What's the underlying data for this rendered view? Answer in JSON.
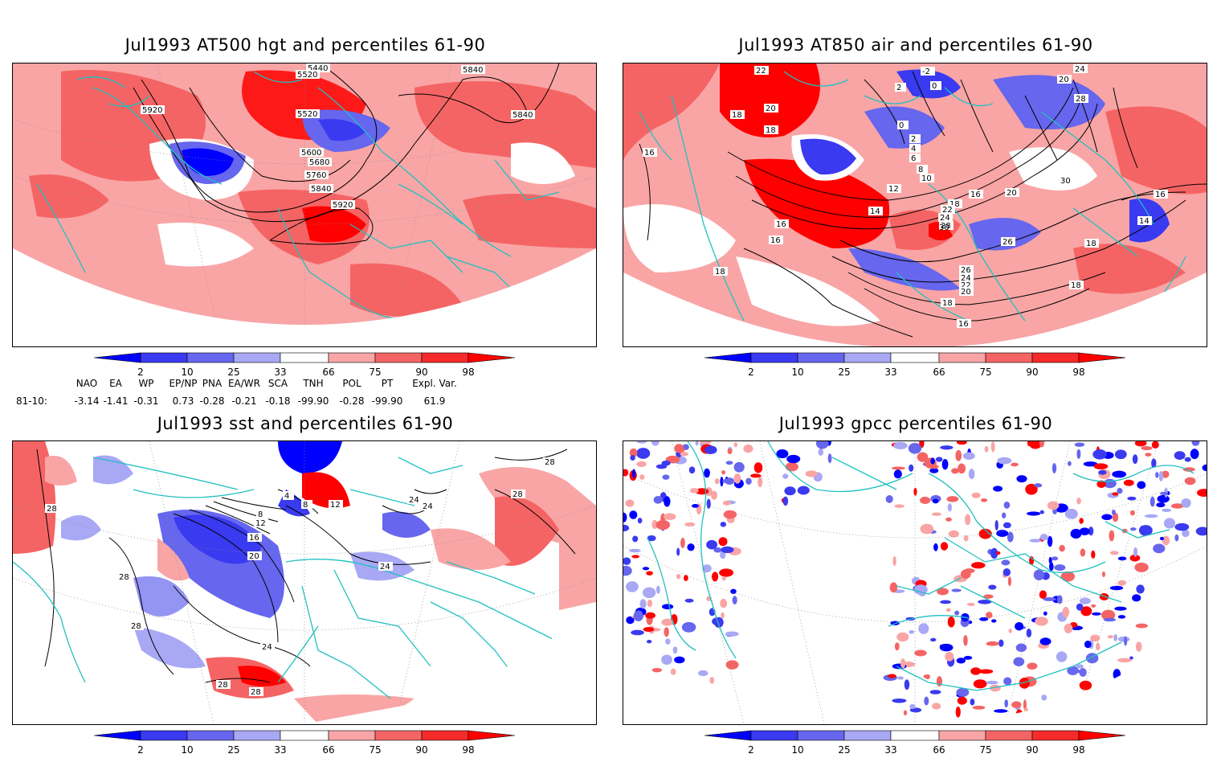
{
  "panels": [
    {
      "title": "Jul1993 AT500 hgt and percentiles 61-90",
      "contour_labels": [
        "5440",
        "5520",
        "5840",
        "5920",
        "5520",
        "5600",
        "5680",
        "5760",
        "5840",
        "5920",
        "5840"
      ]
    },
    {
      "title": "Jul1993 AT850 air and percentiles 61-90",
      "contour_labels": [
        "22",
        "-2",
        "24",
        "20",
        "2",
        "0",
        "18",
        "20",
        "18",
        "0",
        "2",
        "4",
        "6",
        "8",
        "10",
        "12",
        "14",
        "16",
        "20",
        "18",
        "22",
        "24",
        "28",
        "30",
        "26",
        "16",
        "16",
        "18",
        "16",
        "14",
        "18",
        "26",
        "24",
        "22",
        "20",
        "18",
        "16",
        "18",
        "28",
        "30",
        "16"
      ]
    },
    {
      "title": "Jul1993 sst and percentiles 61-90",
      "contour_labels": [
        "28",
        "28",
        "28",
        "28",
        "28",
        "24",
        "24",
        "24",
        "24",
        "20",
        "16",
        "12",
        "8",
        "4",
        "12",
        "8",
        "28",
        "28"
      ]
    },
    {
      "title": "Jul1993 gpcc percentiles 61-90",
      "contour_labels": []
    }
  ],
  "colorbar": {
    "labels": [
      "2",
      "10",
      "25",
      "33",
      "66",
      "75",
      "90",
      "98"
    ],
    "colors": [
      "#0000ff",
      "#3a3af0",
      "#6666ee",
      "#a8a8f5",
      "#ffffff",
      "#f9a5a5",
      "#f56464",
      "#f52a2a",
      "#ff0000"
    ]
  },
  "indices": {
    "headers": [
      "NAO",
      "EA",
      "WP",
      "EP/NP",
      "PNA",
      "EA/WR",
      "SCA",
      "TNH",
      "POL",
      "PT",
      "Expl. Var."
    ],
    "row_label": "81-10:",
    "values": [
      "-3.14",
      "-1.41",
      "-0.31",
      "0.73",
      "-0.28",
      "-0.21",
      "-0.18",
      "-99.90",
      "-0.28",
      "-99.90",
      "61.9"
    ]
  }
}
